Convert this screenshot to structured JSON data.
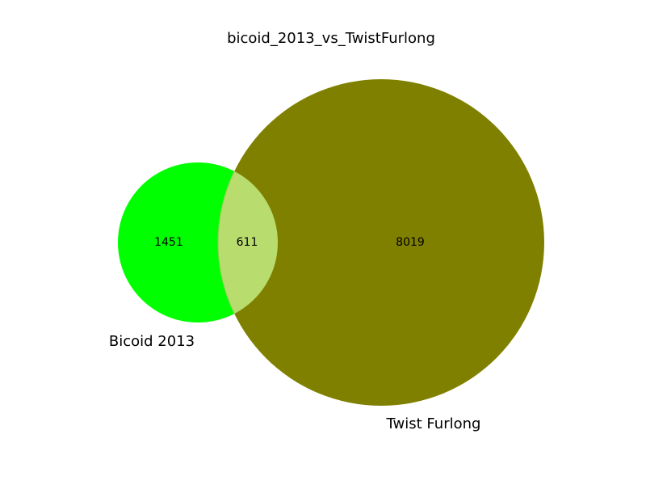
{
  "diagram": {
    "type": "venn2",
    "title": "bicoid_2013_vs_TwistFurlong",
    "sets": [
      {
        "name": "Bicoid 2013",
        "color": "#00ff00"
      },
      {
        "name": "Twist Furlong",
        "color": "#808000"
      }
    ],
    "regions": {
      "only_a": "1451",
      "intersection": "611",
      "only_b": "8019"
    },
    "intersection_color": "#b8dc6e"
  }
}
